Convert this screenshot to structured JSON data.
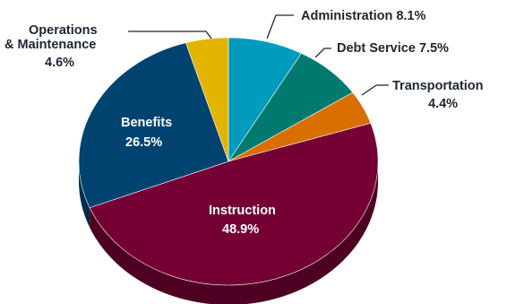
{
  "chart_data": {
    "type": "pie",
    "title": "",
    "slices": [
      {
        "label": "Administration",
        "pct_text": "8.1%",
        "value": 8.1,
        "color": "#009bbd",
        "side_color": "#00728b"
      },
      {
        "label": "Debt Service",
        "pct_text": "7.5%",
        "value": 7.5,
        "color": "#007a6e",
        "side_color": "#00574e"
      },
      {
        "label": "Transportation",
        "pct_text": "4.4%",
        "value": 4.4,
        "color": "#d96f00",
        "side_color": "#a35300"
      },
      {
        "label": "Instruction",
        "pct_text": "48.9%",
        "value": 48.9,
        "color": "#750033",
        "side_color": "#4e0022"
      },
      {
        "label": "Benefits",
        "pct_text": "26.5%",
        "value": 26.5,
        "color": "#004270",
        "side_color": "#002b4a"
      },
      {
        "label": "Operations & Maintenance",
        "label_lines": [
          "Operations",
          "& Maintenance"
        ],
        "pct_text": "4.6%",
        "value": 4.6,
        "color": "#e3b400",
        "side_color": "#a88500"
      }
    ],
    "labels": {
      "administration": "Administration 8.1%",
      "debt_service": "Debt Service 7.5%",
      "transportation": "Transportation",
      "transportation_pct": "4.4%",
      "instruction": "Instruction",
      "instruction_pct": "48.9%",
      "benefits": "Benefits",
      "benefits_pct": "26.5%",
      "operations_line1": "Operations",
      "operations_line2": "& Maintenance",
      "operations_pct": "4.6%"
    }
  }
}
